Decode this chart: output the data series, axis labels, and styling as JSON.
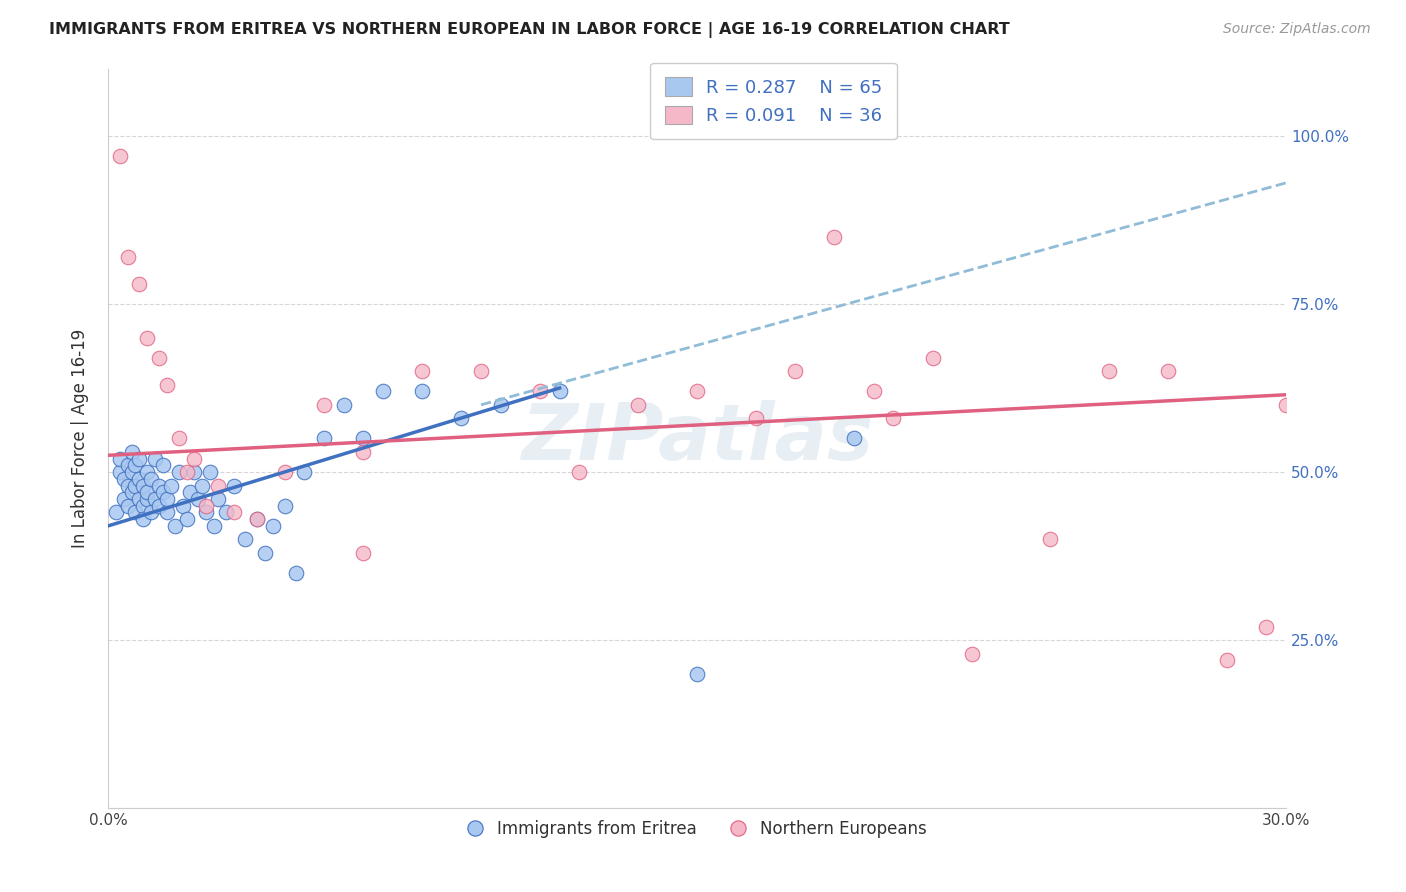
{
  "title": "IMMIGRANTS FROM ERITREA VS NORTHERN EUROPEAN IN LABOR FORCE | AGE 16-19 CORRELATION CHART",
  "source": "Source: ZipAtlas.com",
  "ylabel": "In Labor Force | Age 16-19",
  "x_min": 0.0,
  "x_max": 0.3,
  "y_min": 0.0,
  "y_max": 1.1,
  "x_ticks": [
    0.0,
    0.05,
    0.1,
    0.15,
    0.2,
    0.25,
    0.3
  ],
  "x_tick_labels": [
    "0.0%",
    "",
    "",
    "",
    "",
    "",
    "30.0%"
  ],
  "y_ticks_right": [
    0.0,
    0.25,
    0.5,
    0.75,
    1.0
  ],
  "y_tick_labels_right": [
    "",
    "25.0%",
    "50.0%",
    "75.0%",
    "100.0%"
  ],
  "blue_color": "#a8c8f0",
  "pink_color": "#f5b8c8",
  "blue_line_color": "#4070c0",
  "pink_line_color": "#e06080",
  "dashed_line_color": "#90bcd8",
  "legend_R1": "0.287",
  "legend_N1": "65",
  "legend_R2": "0.091",
  "legend_N2": "36",
  "legend_label1": "Immigrants from Eritrea",
  "legend_label2": "Northern Europeans",
  "watermark": "ZIPatlas",
  "blue_line_x0": 0.0,
  "blue_line_y0": 0.42,
  "blue_line_x1": 0.115,
  "blue_line_y1": 0.625,
  "pink_line_x0": 0.0,
  "pink_line_y0": 0.525,
  "pink_line_x1": 0.3,
  "pink_line_y1": 0.615,
  "dash_line_x0": 0.095,
  "dash_line_y0": 0.6,
  "dash_line_x1": 0.3,
  "dash_line_y1": 0.93,
  "blue_x": [
    0.002,
    0.003,
    0.003,
    0.004,
    0.004,
    0.005,
    0.005,
    0.005,
    0.006,
    0.006,
    0.006,
    0.007,
    0.007,
    0.007,
    0.008,
    0.008,
    0.008,
    0.009,
    0.009,
    0.009,
    0.01,
    0.01,
    0.01,
    0.011,
    0.011,
    0.012,
    0.012,
    0.013,
    0.013,
    0.014,
    0.014,
    0.015,
    0.015,
    0.016,
    0.017,
    0.018,
    0.019,
    0.02,
    0.021,
    0.022,
    0.023,
    0.024,
    0.025,
    0.026,
    0.027,
    0.028,
    0.03,
    0.032,
    0.035,
    0.038,
    0.04,
    0.042,
    0.045,
    0.048,
    0.05,
    0.055,
    0.06,
    0.065,
    0.07,
    0.08,
    0.09,
    0.1,
    0.115,
    0.15,
    0.19
  ],
  "blue_y": [
    0.44,
    0.5,
    0.52,
    0.46,
    0.49,
    0.48,
    0.51,
    0.45,
    0.47,
    0.5,
    0.53,
    0.44,
    0.48,
    0.51,
    0.46,
    0.49,
    0.52,
    0.45,
    0.48,
    0.43,
    0.46,
    0.5,
    0.47,
    0.44,
    0.49,
    0.46,
    0.52,
    0.45,
    0.48,
    0.47,
    0.51,
    0.44,
    0.46,
    0.48,
    0.42,
    0.5,
    0.45,
    0.43,
    0.47,
    0.5,
    0.46,
    0.48,
    0.44,
    0.5,
    0.42,
    0.46,
    0.44,
    0.48,
    0.4,
    0.43,
    0.38,
    0.42,
    0.45,
    0.35,
    0.5,
    0.55,
    0.6,
    0.55,
    0.62,
    0.62,
    0.58,
    0.6,
    0.62,
    0.2,
    0.55
  ],
  "pink_x": [
    0.003,
    0.005,
    0.008,
    0.01,
    0.013,
    0.015,
    0.018,
    0.02,
    0.022,
    0.025,
    0.028,
    0.032,
    0.038,
    0.045,
    0.055,
    0.065,
    0.08,
    0.095,
    0.11,
    0.12,
    0.135,
    0.15,
    0.165,
    0.175,
    0.185,
    0.195,
    0.21,
    0.22,
    0.24,
    0.255,
    0.27,
    0.285,
    0.295,
    0.3,
    0.065,
    0.2
  ],
  "pink_y": [
    0.97,
    0.82,
    0.78,
    0.7,
    0.67,
    0.63,
    0.55,
    0.5,
    0.52,
    0.45,
    0.48,
    0.44,
    0.43,
    0.5,
    0.6,
    0.53,
    0.65,
    0.65,
    0.62,
    0.5,
    0.6,
    0.62,
    0.58,
    0.65,
    0.85,
    0.62,
    0.67,
    0.23,
    0.4,
    0.65,
    0.65,
    0.22,
    0.27,
    0.6,
    0.38,
    0.58
  ]
}
